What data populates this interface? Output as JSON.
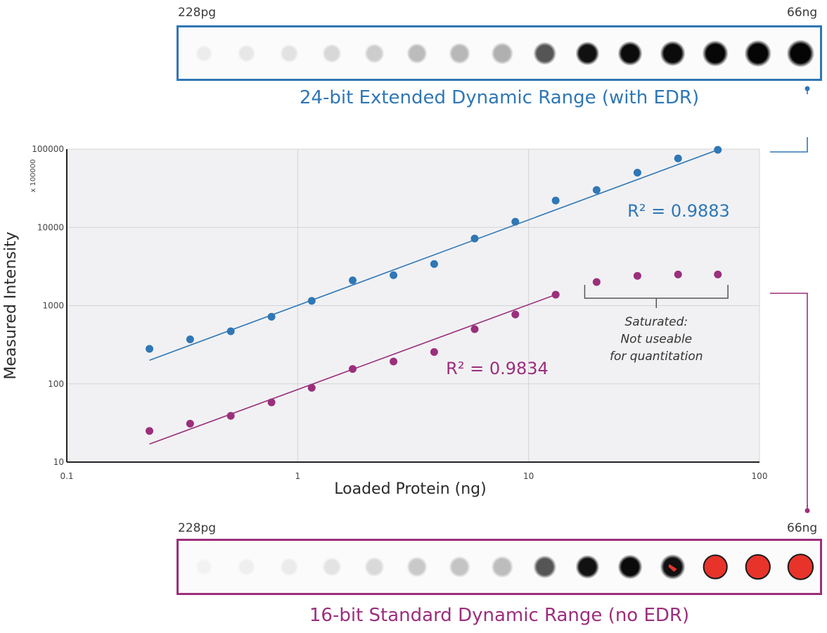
{
  "top_strip": {
    "label_left": "228pg",
    "label_right": "66ng",
    "caption": "24-bit Extended Dynamic Range (with EDR)",
    "border_color": "#2f77b5",
    "dots": [
      {
        "shade": "#ececec"
      },
      {
        "shade": "#e7e7e7"
      },
      {
        "shade": "#e2e2e2"
      },
      {
        "shade": "#d8d8d8"
      },
      {
        "shade": "#cdcdcd"
      },
      {
        "shade": "#bcbcbc"
      },
      {
        "shade": "#b8b8b8"
      },
      {
        "shade": "#b0b0b0"
      },
      {
        "shade": "#555555"
      },
      {
        "shade": "#111111"
      },
      {
        "shade": "#0b0b0b"
      },
      {
        "shade": "#0b0b0b"
      },
      {
        "shade": "#070707"
      },
      {
        "shade": "#050505"
      },
      {
        "shade": "#050505"
      }
    ]
  },
  "bottom_strip": {
    "label_left": "228pg",
    "label_right": "66ng",
    "caption": "16-bit Standard Dynamic Range (no EDR)",
    "border_color": "#9b2f7c",
    "dots": [
      {
        "shade": "#f2f2f2"
      },
      {
        "shade": "#efefef"
      },
      {
        "shade": "#ebebeb"
      },
      {
        "shade": "#e3e3e3"
      },
      {
        "shade": "#d9d9d9"
      },
      {
        "shade": "#c9c9c9"
      },
      {
        "shade": "#c4c4c4"
      },
      {
        "shade": "#bdbdbd"
      },
      {
        "shade": "#555555"
      },
      {
        "shade": "#121212"
      },
      {
        "shade": "#0b0b0b"
      },
      {
        "shade": "#111111",
        "saturated": "partial"
      },
      {
        "shade": "#e8332a",
        "saturated": "full"
      },
      {
        "shade": "#e8332a",
        "saturated": "full"
      },
      {
        "shade": "#e8332a",
        "saturated": "full"
      }
    ]
  },
  "chart_data": {
    "type": "scatter",
    "xscale": "log",
    "yscale": "log",
    "xlim": [
      0.1,
      100
    ],
    "ylim": [
      10,
      100000
    ],
    "xlabel": "Loaded Protein (ng)",
    "ylabel": "Measured Intensity",
    "y_unit_note": "x 100000",
    "xticks": [
      "0.1",
      "1",
      "10",
      "100"
    ],
    "yticks": [
      "10",
      "100",
      "1000",
      "10000",
      "100000"
    ],
    "grid": true,
    "series": [
      {
        "key": "edr",
        "color": "#2f77b5",
        "x": [
          0.228,
          0.342,
          0.513,
          0.77,
          1.15,
          1.73,
          2.6,
          3.9,
          5.84,
          8.76,
          13.1,
          19.7,
          29.6,
          44.4,
          66
        ],
        "y": [
          280,
          370,
          470,
          720,
          1150,
          2100,
          2450,
          3400,
          7200,
          11800,
          22000,
          30000,
          50000,
          76000,
          98000
        ],
        "fit": {
          "x": [
            0.228,
            66
          ],
          "y": [
            200,
            98000
          ]
        },
        "r2_label": "R² = 0.9883"
      },
      {
        "key": "standard",
        "color": "#9b2f7c",
        "x": [
          0.228,
          0.342,
          0.513,
          0.77,
          1.15,
          1.73,
          2.6,
          3.9,
          5.84,
          8.76,
          13.1,
          19.7,
          29.6,
          44.4,
          66
        ],
        "y": [
          25,
          31,
          39,
          58,
          89,
          155,
          193,
          255,
          500,
          770,
          1380,
          2000,
          2400,
          2500,
          2500
        ],
        "fit": {
          "x": [
            0.228,
            13.1
          ],
          "y": [
            17,
            1380
          ]
        },
        "r2_label": "R² = 0.9834"
      }
    ],
    "annotation": {
      "lines": [
        "Saturated:",
        "Not useable",
        "for quantitation"
      ],
      "x_range": [
        17.5,
        73
      ]
    }
  }
}
